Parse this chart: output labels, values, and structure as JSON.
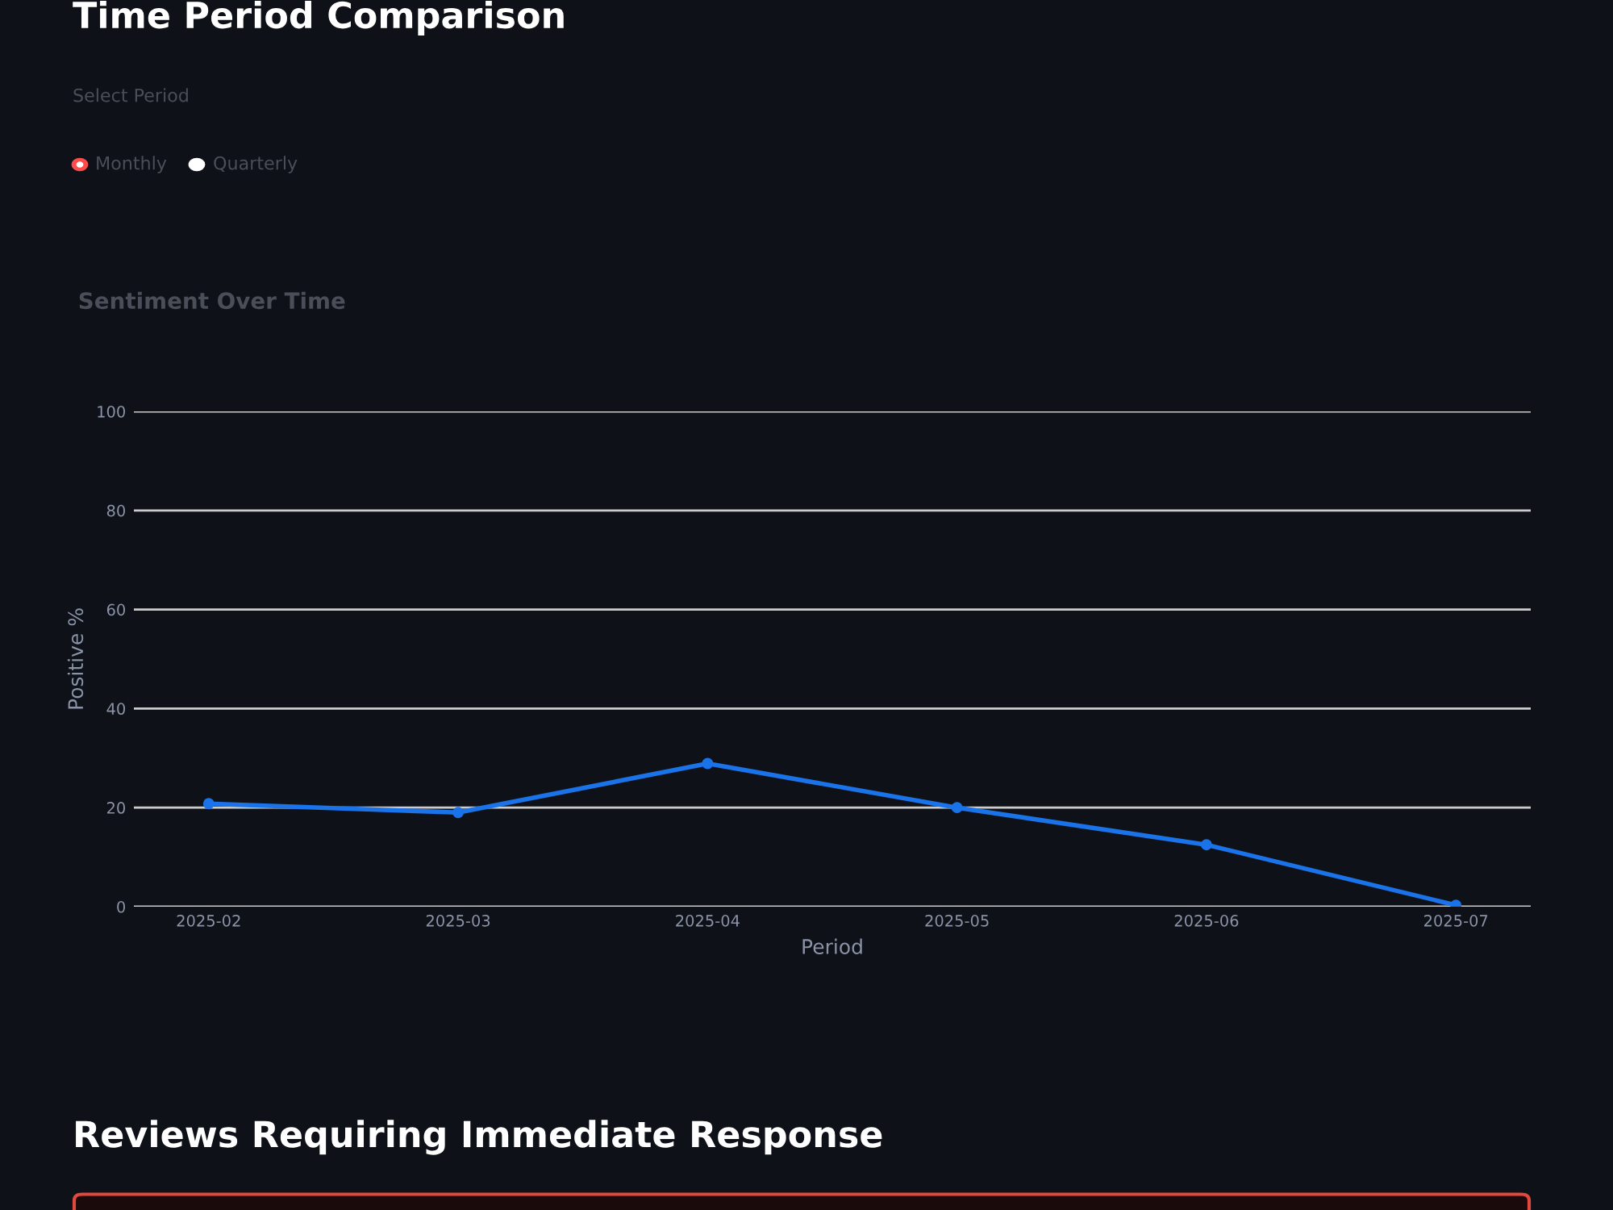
{
  "chart_data": {
    "type": "line",
    "title": "Sentiment Over Time",
    "xlabel": "Period",
    "ylabel": "Positive %",
    "annotations": [
      "Time Period Comparison",
      "Select Period",
      "Monthly",
      "Quarterly",
      "Reviews Requiring Immediate Response"
    ],
    "categories": [
      "2025-02",
      "2025-03",
      "2025-04",
      "2025-05",
      "2025-06",
      "2025-07"
    ],
    "series": [
      {
        "color": "#1a73e8",
        "values": [
          20.8,
          19.0,
          28.9,
          20.0,
          12.5,
          0.3
        ]
      }
    ],
    "ylim": [
      0,
      100
    ],
    "yticks": [
      0,
      20,
      40,
      60,
      80,
      100
    ],
    "grid": "y",
    "marker": "circle",
    "line_style": "solid"
  }
}
